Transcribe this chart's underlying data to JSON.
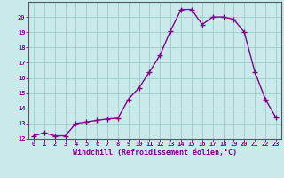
{
  "x": [
    0,
    1,
    2,
    3,
    4,
    5,
    6,
    7,
    8,
    9,
    10,
    11,
    12,
    13,
    14,
    15,
    16,
    17,
    18,
    19,
    20,
    21,
    22,
    23
  ],
  "y": [
    12.2,
    12.4,
    12.2,
    12.2,
    13.0,
    13.1,
    13.2,
    13.3,
    13.35,
    14.6,
    15.35,
    16.4,
    17.5,
    19.1,
    20.5,
    20.5,
    19.5,
    20.0,
    20.0,
    19.85,
    19.0,
    16.4,
    14.6,
    13.4
  ],
  "line_color": "#880088",
  "marker": "+",
  "bg_color": "#c8eaea",
  "grid_color": "#a0cccc",
  "xlabel": "Windchill (Refroidissement éolien,°C)",
  "ylim": [
    12,
    21
  ],
  "xlim_min": -0.5,
  "xlim_max": 23.5,
  "yticks": [
    12,
    13,
    14,
    15,
    16,
    17,
    18,
    19,
    20
  ],
  "xticks": [
    0,
    1,
    2,
    3,
    4,
    5,
    6,
    7,
    8,
    9,
    10,
    11,
    12,
    13,
    14,
    15,
    16,
    17,
    18,
    19,
    20,
    21,
    22,
    23
  ],
  "tick_label_color": "#880088",
  "linewidth": 1.0,
  "markersize": 4,
  "tick_fontsize": 5.0,
  "xlabel_fontsize": 6.0
}
